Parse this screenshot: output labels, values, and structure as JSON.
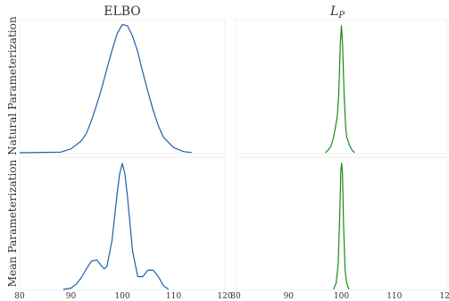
{
  "colors": {
    "elbo": "#1f5fa8",
    "lp": "#1a8a1a"
  },
  "chart_data": {
    "type": "line",
    "columns": [
      "ELBO",
      "L_P"
    ],
    "col_titles": [
      {
        "main": "ELBO",
        "sub": ""
      },
      {
        "main": "L",
        "sub": "P"
      }
    ],
    "rows": [
      "Natural Parameterization",
      "Mean Parameterization"
    ],
    "xlim": [
      80,
      120
    ],
    "xticks": [
      80,
      90,
      100,
      110,
      120
    ],
    "xtick_labels": [
      "80",
      "90",
      "100",
      "110",
      "120"
    ],
    "grid": false,
    "panels": [
      {
        "id": "natural-elbo",
        "row": 0,
        "col": 0,
        "series": "elbo",
        "x": [
          80,
          88,
          90,
          92,
          93,
          94,
          95,
          96,
          97,
          98,
          99,
          100,
          101,
          102,
          103,
          104,
          105,
          106,
          107,
          108,
          110,
          112,
          113.5
        ],
        "y": [
          0,
          0.005,
          0.03,
          0.09,
          0.15,
          0.25,
          0.37,
          0.5,
          0.65,
          0.79,
          0.92,
          0.99,
          0.98,
          0.9,
          0.78,
          0.62,
          0.47,
          0.33,
          0.21,
          0.12,
          0.04,
          0.008,
          0.002
        ]
      },
      {
        "id": "natural-lp",
        "row": 0,
        "col": 1,
        "series": "lp",
        "x": [
          97,
          97.5,
          98,
          98.4,
          98.8,
          99.2,
          99.5,
          99.8,
          100,
          100.2,
          100.5,
          100.8,
          101,
          101.2,
          101.5,
          102,
          102.5
        ],
        "y": [
          0,
          0.02,
          0.05,
          0.1,
          0.18,
          0.28,
          0.45,
          0.85,
          0.98,
          0.85,
          0.45,
          0.2,
          0.12,
          0.1,
          0.06,
          0.02,
          0
        ],
        "ylim": [
          0,
          1.0
        ]
      },
      {
        "id": "mean-elbo",
        "row": 1,
        "col": 0,
        "series": "elbo",
        "x": [
          88.5,
          90,
          91,
          92,
          93,
          94,
          95,
          96,
          96.5,
          97,
          98,
          99,
          99.5,
          100,
          100.5,
          101,
          102,
          103,
          104,
          105,
          106,
          107,
          108,
          109
        ],
        "y": [
          0,
          0.01,
          0.04,
          0.09,
          0.16,
          0.22,
          0.23,
          0.18,
          0.16,
          0.18,
          0.38,
          0.75,
          0.9,
          0.98,
          0.9,
          0.72,
          0.3,
          0.1,
          0.1,
          0.15,
          0.15,
          0.1,
          0.03,
          0
        ],
        "ylim": [
          0,
          1.0
        ]
      },
      {
        "id": "mean-lp",
        "row": 1,
        "col": 1,
        "series": "lp",
        "x": [
          98.5,
          99,
          99.4,
          99.7,
          99.9,
          100.05,
          100.2,
          100.4,
          100.7,
          101,
          101.4
        ],
        "y": [
          0,
          0.05,
          0.2,
          0.6,
          0.93,
          0.98,
          0.9,
          0.5,
          0.15,
          0.05,
          0
        ],
        "ylim": [
          0,
          1.0
        ]
      }
    ]
  }
}
